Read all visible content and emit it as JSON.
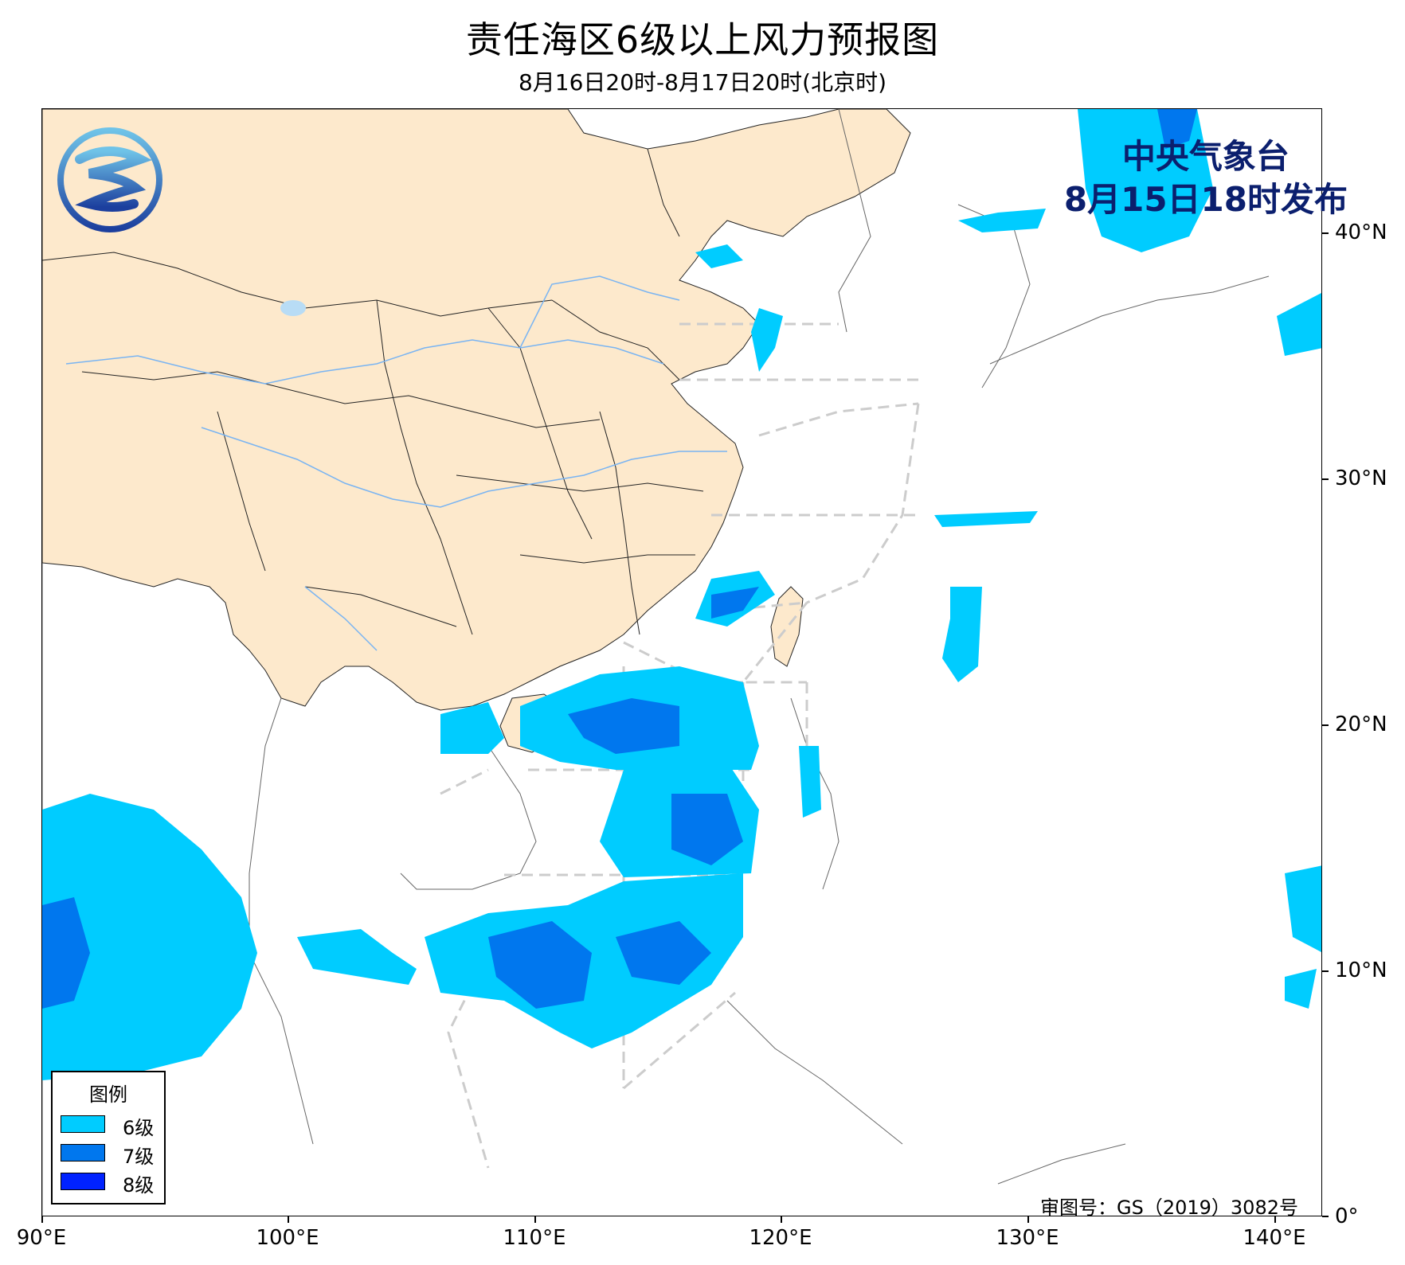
{
  "title": "责任海区6级以上风力预报图",
  "subtitle": "8月16日20时-8月17日20时(北京时)",
  "issuer": {
    "name": "中央气象台",
    "time": "8月15日18时发布"
  },
  "approval_number": "审图号：GS（2019）3082号",
  "legend": {
    "title": "图例",
    "items": [
      {
        "label": "6级",
        "color": "#00ccff"
      },
      {
        "label": "7级",
        "color": "#0077ee"
      },
      {
        "label": "8级",
        "color": "#0022ff"
      }
    ]
  },
  "axes": {
    "x_ticks": [
      "90°E",
      "100°E",
      "110°E",
      "120°E",
      "130°E",
      "140°E"
    ],
    "y_ticks": [
      "40°N",
      "30°N",
      "20°N",
      "10°N",
      "0°"
    ]
  },
  "colors": {
    "land_china": "#fde9cc",
    "sea": "#ffffff",
    "borders": "#222222",
    "rivers": "#79b4f2",
    "sea_zones": "#cccccc",
    "issuer_text": "#0b1f6e"
  },
  "logo_icon": "cma-logo-icon"
}
